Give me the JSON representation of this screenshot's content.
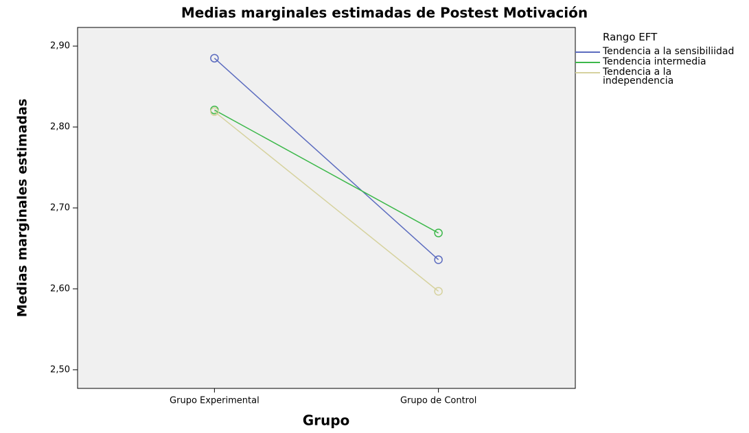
{
  "chart_data": {
    "type": "line",
    "title": "Medias marginales estimadas de Postest Motivación",
    "x_label": "Grupo",
    "y_label": "Medias marginales estimadas",
    "legend_title": "Rango EFT",
    "categories": [
      "Grupo Experimental",
      "Grupo de Control"
    ],
    "series": [
      {
        "name": "Tendencia a la sensibiliidad",
        "color": "#5b6bbf",
        "values": [
          2.885,
          2.636
        ]
      },
      {
        "name": "Tendencia intermedia",
        "color": "#3cb84a",
        "values": [
          2.821,
          2.669
        ]
      },
      {
        "name": "Tendencia a la independencia",
        "color": "#d6d29e",
        "values": [
          2.819,
          2.597
        ]
      }
    ],
    "ylim": [
      2.477,
      2.923
    ],
    "yticks": [
      {
        "value": 2.5,
        "label": "2,50"
      },
      {
        "value": 2.6,
        "label": "2,60"
      },
      {
        "value": 2.7,
        "label": "2,70"
      },
      {
        "value": 2.8,
        "label": "2,80"
      },
      {
        "value": 2.9,
        "label": "2,90"
      }
    ],
    "legend": "right"
  }
}
